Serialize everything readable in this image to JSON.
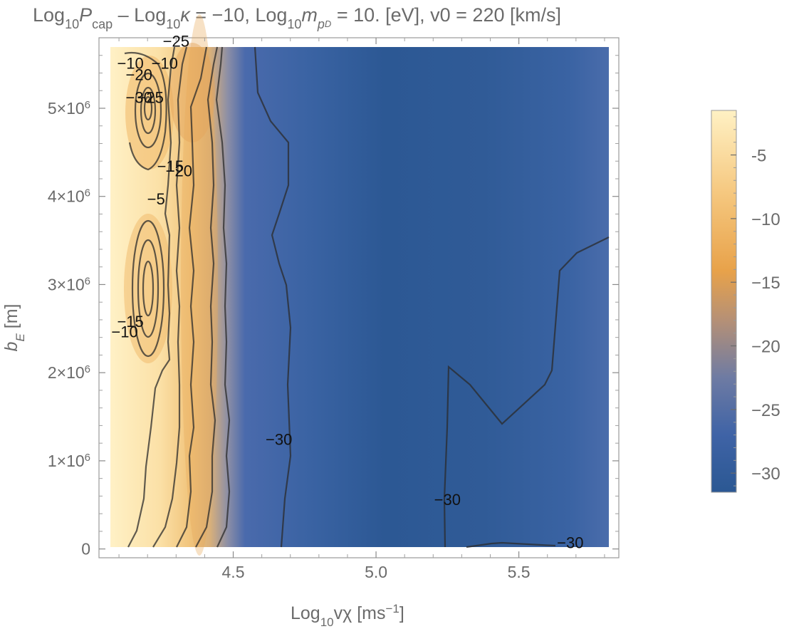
{
  "chart_data": {
    "type": "heatmap",
    "title": {
      "prefix": "Log",
      "sub1": "10",
      "p": "P",
      "p_sub": "cap",
      "mid": " – Log",
      "sub2": "10",
      "kappa": "κ",
      "eq1": " = −10, Log",
      "sub3": "10",
      "m": "m",
      "m_sub": "p",
      "m_subsub": "D",
      "rest": " = 10. [eV], v0 = 220 [km/s]"
    },
    "xlabel": {
      "main": "Log",
      "sub": "10",
      "var": "vχ [ms",
      "sup": "−1",
      "end": "]"
    },
    "ylabel": {
      "b": "b",
      "sub": "E",
      "unit": " [m]"
    },
    "xlim": [
      4.03,
      5.85
    ],
    "ylim": [
      -100000,
      5800000
    ],
    "x_ticks": [
      {
        "v": 4.5,
        "label": "4.5"
      },
      {
        "v": 5.0,
        "label": "5.0"
      },
      {
        "v": 5.5,
        "label": "5.5"
      }
    ],
    "y_ticks": [
      {
        "v": 0,
        "label": "0",
        "exp": ""
      },
      {
        "v": 1000000,
        "label": "1×10",
        "exp": "6"
      },
      {
        "v": 2000000,
        "label": "2×10",
        "exp": "6"
      },
      {
        "v": 3000000,
        "label": "3×10",
        "exp": "6"
      },
      {
        "v": 4000000,
        "label": "4×10",
        "exp": "6"
      },
      {
        "v": 5000000,
        "label": "5×10",
        "exp": "6"
      }
    ],
    "colorbar": {
      "range": [
        -31.5,
        -1.5
      ],
      "ticks": [
        {
          "v": -5,
          "label": "-5"
        },
        {
          "v": -10,
          "label": "−10"
        },
        {
          "v": -15,
          "label": "−15"
        },
        {
          "v": -20,
          "label": "−20"
        },
        {
          "v": -25,
          "label": "−25"
        },
        {
          "v": -30,
          "label": "−30"
        }
      ],
      "colors": [
        "#2b5893",
        "#3d62a6",
        "#7a7f9a",
        "#e8a24a",
        "#f5c77e",
        "#fff1c4"
      ]
    },
    "contour_labels": [
      {
        "text": "−25",
        "x": 4.3,
        "y": 5700000
      },
      {
        "text": "−10",
        "x": 4.14,
        "y": 5450000
      },
      {
        "text": "−20",
        "x": 4.17,
        "y": 5320000
      },
      {
        "text": "−10",
        "x": 4.26,
        "y": 5450000
      },
      {
        "text": "−30",
        "x": 4.17,
        "y": 5060000
      },
      {
        "text": "−25",
        "x": 4.21,
        "y": 5060000
      },
      {
        "text": "−15",
        "x": 4.28,
        "y": 4280000
      },
      {
        "text": "−20",
        "x": 4.31,
        "y": 4230000
      },
      {
        "text": "−5",
        "x": 4.23,
        "y": 3910000
      },
      {
        "text": "−15",
        "x": 4.14,
        "y": 2520000
      },
      {
        "text": "−10",
        "x": 4.12,
        "y": 2400000
      },
      {
        "text": "−30",
        "x": 4.66,
        "y": 1180000
      },
      {
        "text": "−30",
        "x": 5.25,
        "y": 500000
      },
      {
        "text": "−30",
        "x": 5.68,
        "y": 10000
      }
    ]
  }
}
